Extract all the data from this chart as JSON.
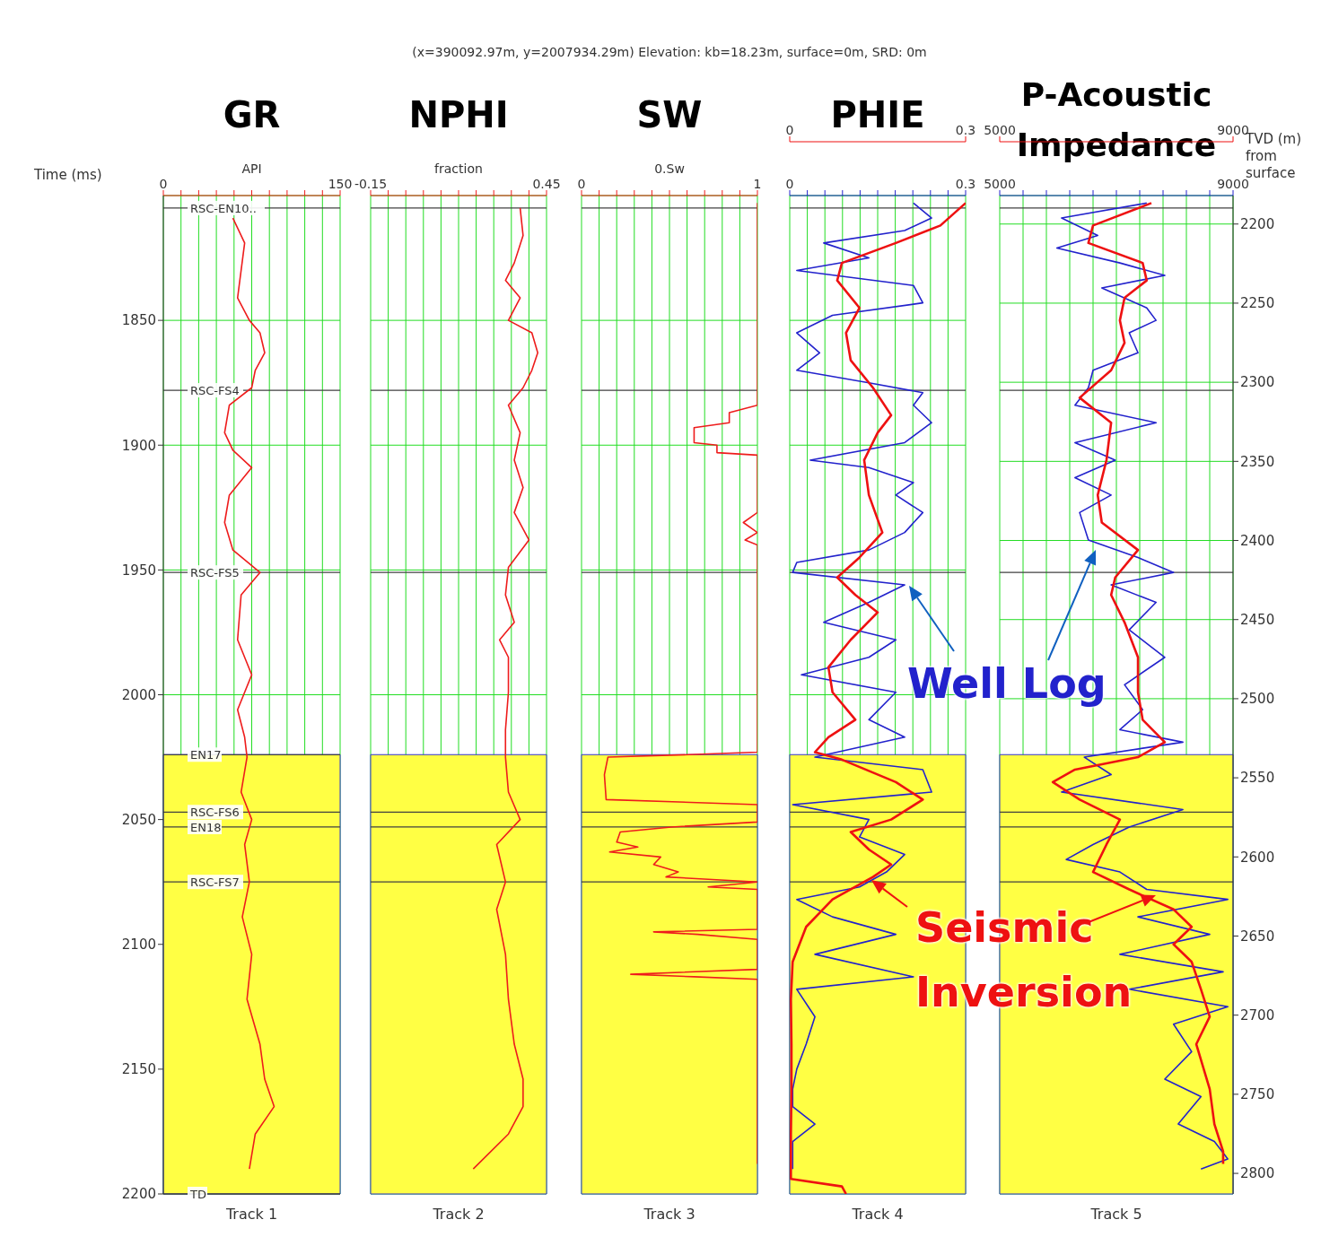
{
  "chart_data": [
    {
      "type": "line",
      "orientation": "horizontal",
      "title": "GR",
      "xlabel": "API",
      "ylabel": "Time (ms)",
      "annotations": [
        "Track 1"
      ],
      "xlim": [
        0,
        150
      ],
      "xticks": [
        0,
        {
          "value": 15,
          "label": null
        },
        {
          "value": 30,
          "label": null
        },
        {
          "value": 45,
          "label": null
        },
        {
          "value": 60,
          "label": null
        },
        {
          "value": 75,
          "label": null
        },
        {
          "value": 90,
          "label": null
        },
        {
          "value": 105,
          "label": null
        },
        {
          "value": 120,
          "label": null
        },
        {
          "value": 135,
          "label": null
        },
        150
      ],
      "ylim": [
        2200,
        1800
      ],
      "yticks": [
        1850,
        1900,
        1950,
        2000,
        2050,
        2100,
        2150,
        2200
      ],
      "grid": true,
      "marker": "none",
      "ref_lines": [
        {
          "axis": "y",
          "value": 1805,
          "label": "RSC-EN10..",
          "color": "#404040"
        },
        {
          "axis": "y",
          "value": 1878,
          "label": "RSC-FS4",
          "color": "#404040"
        },
        {
          "axis": "y",
          "value": 1951,
          "label": "RSC-FS5",
          "color": "#404040"
        },
        {
          "axis": "y",
          "value": 2024,
          "label": "EN17",
          "color": "#404040"
        },
        {
          "axis": "y",
          "value": 2047,
          "label": "RSC-FS6",
          "color": "#404040"
        },
        {
          "axis": "y",
          "value": 2053,
          "label": "EN18",
          "color": "#404040"
        },
        {
          "axis": "y",
          "value": 2075,
          "label": "RSC-FS7",
          "color": "#404040"
        },
        {
          "axis": "y",
          "value": 2200,
          "label": "TD",
          "color": "#404040"
        }
      ],
      "bands": [
        {
          "axis": "y",
          "from": 2024,
          "to": 2200,
          "color": "#ffff44"
        }
      ],
      "series": [
        {
          "color": "#ee1c1c",
          "x": [
            1809,
            1819,
            1830,
            1841,
            1850,
            1855,
            1863,
            1870,
            1877,
            1884,
            1895,
            1902,
            1909,
            1920,
            1931,
            1942,
            1951,
            1960,
            1978,
            1992,
            2006,
            2017,
            2025,
            2039,
            2050,
            2060,
            2075,
            2089,
            2104,
            2122,
            2140,
            2154,
            2165,
            2176,
            2190
          ],
          "values": [
            59,
            69,
            66,
            63,
            73,
            82,
            86,
            78,
            75,
            56,
            52,
            59,
            75,
            56,
            52,
            59,
            82,
            66,
            63,
            75,
            63,
            69,
            71,
            66,
            75,
            69,
            73,
            67,
            75,
            71,
            82,
            86,
            94,
            78,
            73
          ]
        }
      ]
    },
    {
      "type": "line",
      "orientation": "horizontal",
      "title": "NPHI",
      "xlabel": "fraction",
      "annotations": [
        "Track 2"
      ],
      "xlim": [
        -0.15,
        0.45
      ],
      "xticks": [
        -0.15,
        {
          "value": -0.09,
          "label": null
        },
        {
          "value": -0.03,
          "label": null
        },
        {
          "value": 0.03,
          "label": null
        },
        {
          "value": 0.09,
          "label": null
        },
        {
          "value": 0.15,
          "label": null
        },
        {
          "value": 0.21,
          "label": null
        },
        {
          "value": 0.27,
          "label": null
        },
        {
          "value": 0.33,
          "label": null
        },
        {
          "value": 0.39,
          "label": null
        },
        0.45
      ],
      "ylim": [
        2200,
        1800
      ],
      "yticks": [
        1850,
        1900,
        1950,
        2000,
        2050,
        2100,
        2150,
        2200
      ],
      "tick_labels": "x",
      "grid": true,
      "marker": "none",
      "ref_lines": [
        {
          "axis": "y",
          "value": 1805,
          "color": "#404040"
        },
        {
          "axis": "y",
          "value": 1878,
          "color": "#404040"
        },
        {
          "axis": "y",
          "value": 1951,
          "color": "#404040"
        },
        {
          "axis": "y",
          "value": 2047,
          "color": "#404040"
        },
        {
          "axis": "y",
          "value": 2053,
          "color": "#404040"
        },
        {
          "axis": "y",
          "value": 2075,
          "color": "#404040"
        }
      ],
      "bands": [
        {
          "axis": "y",
          "from": 2024,
          "to": 2200,
          "color": "#ffff44"
        }
      ],
      "series": [
        {
          "color": "#ee1c1c",
          "x": [
            1805,
            1816,
            1827,
            1834,
            1841,
            1850,
            1855,
            1863,
            1870,
            1877,
            1884,
            1895,
            1906,
            1917,
            1927,
            1938,
            1949,
            1960,
            1971,
            1978,
            1985,
            1999,
            2014,
            2025,
            2039,
            2050,
            2060,
            2075,
            2086,
            2104,
            2122,
            2140,
            2154,
            2165,
            2176,
            2190
          ],
          "values": [
            0.36,
            0.37,
            0.34,
            0.31,
            0.36,
            0.32,
            0.4,
            0.42,
            0.4,
            0.37,
            0.32,
            0.36,
            0.34,
            0.37,
            0.34,
            0.39,
            0.32,
            0.31,
            0.34,
            0.29,
            0.32,
            0.32,
            0.31,
            0.31,
            0.32,
            0.36,
            0.28,
            0.31,
            0.28,
            0.31,
            0.32,
            0.34,
            0.37,
            0.37,
            0.32,
            0.2
          ]
        }
      ]
    },
    {
      "type": "line",
      "orientation": "horizontal",
      "title": "SW",
      "subtitle": "(x=390092.97m, y=2007934.29m) Elevation: kb=18.23m, surface=0m, SRD: 0m",
      "xlabel": "0.Sw",
      "annotations": [
        "Track 3"
      ],
      "xlim": [
        0,
        1
      ],
      "xticks": [
        0,
        {
          "value": 0.1,
          "label": null
        },
        {
          "value": 0.2,
          "label": null
        },
        {
          "value": 0.3,
          "label": null
        },
        {
          "value": 0.4,
          "label": null
        },
        {
          "value": 0.5,
          "label": null
        },
        {
          "value": 0.6,
          "label": null
        },
        {
          "value": 0.7,
          "label": null
        },
        {
          "value": 0.8,
          "label": null
        },
        {
          "value": 0.9,
          "label": null
        },
        1
      ],
      "ylim": [
        2200,
        1800
      ],
      "yticks": [
        1850,
        1900,
        1950,
        2000,
        2050,
        2100,
        2150,
        2200
      ],
      "tick_labels": "x",
      "grid": true,
      "marker": "none",
      "ref_lines": [
        {
          "axis": "y",
          "value": 1805,
          "color": "#404040"
        },
        {
          "axis": "y",
          "value": 1878,
          "color": "#404040"
        },
        {
          "axis": "y",
          "value": 1951,
          "color": "#404040"
        },
        {
          "axis": "y",
          "value": 2047,
          "color": "#404040"
        },
        {
          "axis": "y",
          "value": 2053,
          "color": "#404040"
        },
        {
          "axis": "y",
          "value": 2075,
          "color": "#404040"
        }
      ],
      "bands": [
        {
          "axis": "y",
          "from": 2024,
          "to": 2200,
          "color": "#ffff44"
        }
      ],
      "series": [
        {
          "color": "#ee1c1c",
          "x": [
            1803,
            1884,
            1887,
            1891,
            1893,
            1899,
            1900,
            1903,
            1904,
            1927,
            1931,
            1935,
            1938,
            1940,
            2023,
            2024,
            2025,
            2032,
            2042,
            2044,
            2051,
            2053,
            2055,
            2059,
            2061,
            2063,
            2065,
            2068,
            2071,
            2073,
            2075,
            2077,
            2078,
            2094,
            2095,
            2096,
            2098,
            2110,
            2112,
            2113,
            2114,
            2188
          ],
          "values": [
            1.0,
            1.0,
            0.84,
            0.84,
            0.64,
            0.64,
            0.77,
            0.77,
            1.0,
            1.0,
            0.92,
            1.0,
            0.93,
            1.0,
            1.0,
            0.61,
            0.15,
            0.13,
            0.14,
            1.0,
            1.0,
            0.51,
            0.22,
            0.2,
            0.32,
            0.16,
            0.45,
            0.41,
            0.55,
            0.48,
            1.0,
            0.72,
            1.0,
            1.0,
            0.41,
            0.66,
            1.0,
            1.0,
            0.28,
            0.64,
            1.0,
            1.0
          ]
        }
      ]
    },
    {
      "type": "line",
      "orientation": "horizontal",
      "title": "PHIE",
      "annotations": [
        "Track 4"
      ],
      "xlim": [
        0,
        0.3
      ],
      "xticks": [
        0,
        {
          "value": 0.03,
          "label": null
        },
        {
          "value": 0.06,
          "label": null
        },
        {
          "value": 0.09,
          "label": null
        },
        {
          "value": 0.12,
          "label": null
        },
        {
          "value": 0.15,
          "label": null
        },
        {
          "value": 0.18,
          "label": null
        },
        {
          "value": 0.21,
          "label": null
        },
        {
          "value": 0.24,
          "label": null
        },
        {
          "value": 0.27,
          "label": null
        },
        0.3
      ],
      "x2lim": [
        0,
        0.3
      ],
      "x2ticks": [
        0,
        0.3
      ],
      "ylim": [
        2200,
        1800
      ],
      "yticks": [
        1850,
        1900,
        1950,
        2000,
        2050,
        2100,
        2150,
        2200
      ],
      "tick_labels": "x",
      "grid": true,
      "marker": "none",
      "ref_lines": [
        {
          "axis": "y",
          "value": 1805,
          "color": "#404040"
        },
        {
          "axis": "y",
          "value": 1878,
          "color": "#404040"
        },
        {
          "axis": "y",
          "value": 1951,
          "color": "#404040"
        },
        {
          "axis": "y",
          "value": 2047,
          "color": "#404040"
        },
        {
          "axis": "y",
          "value": 2053,
          "color": "#404040"
        },
        {
          "axis": "y",
          "value": 2075,
          "color": "#404040"
        }
      ],
      "bands": [
        {
          "axis": "y",
          "from": 2024,
          "to": 2200,
          "color": "#ffff44"
        }
      ],
      "series": [
        {
          "name": "Well Log",
          "color": "#2222cc",
          "x": [
            1803,
            1809,
            1814,
            1819,
            1825,
            1830,
            1836,
            1843,
            1848,
            1855,
            1863,
            1870,
            1875,
            1879,
            1884,
            1891,
            1899,
            1906,
            1909,
            1915,
            1920,
            1927,
            1935,
            1942,
            1947,
            1951,
            1956,
            1963,
            1971,
            1978,
            1985,
            1992,
            1999,
            2010,
            2017,
            2025,
            2030,
            2039,
            2044,
            2050,
            2057,
            2064,
            2071,
            2077,
            2082,
            2089,
            2096,
            2104,
            2113,
            2118,
            2129,
            2140,
            2150,
            2158,
            2165,
            2172,
            2179,
            2190
          ],
          "values": [
            0.211,
            0.242,
            0.196,
            0.058,
            0.135,
            0.012,
            0.211,
            0.227,
            0.073,
            0.012,
            0.051,
            0.012,
            0.135,
            0.227,
            0.211,
            0.242,
            0.196,
            0.035,
            0.135,
            0.211,
            0.181,
            0.227,
            0.196,
            0.135,
            0.012,
            0.005,
            0.196,
            0.135,
            0.058,
            0.181,
            0.135,
            0.02,
            0.181,
            0.135,
            0.196,
            0.043,
            0.227,
            0.242,
            0.005,
            0.135,
            0.119,
            0.196,
            0.165,
            0.119,
            0.012,
            0.073,
            0.181,
            0.043,
            0.211,
            0.012,
            0.043,
            0.028,
            0.012,
            0.005,
            0.005,
            0.043,
            0.005,
            0.005
          ]
        },
        {
          "name": "Seismic Inversion",
          "color": "#ee1111",
          "axis": "x2",
          "x": [
            1803,
            1812,
            1819,
            1827,
            1834,
            1845,
            1855,
            1866,
            1877,
            1888,
            1895,
            1906,
            1920,
            1935,
            1945,
            1953,
            1960,
            1967,
            1978,
            1989,
            1999,
            2010,
            2017,
            2023,
            2026,
            2035,
            2042,
            2050,
            2055,
            2062,
            2068,
            2073,
            2082,
            2093,
            2107,
            2122,
            2140,
            2158,
            2176,
            2194,
            2197,
            2200
          ],
          "values": [
            0.3,
            0.257,
            0.181,
            0.089,
            0.081,
            0.119,
            0.096,
            0.104,
            0.142,
            0.173,
            0.15,
            0.127,
            0.135,
            0.158,
            0.119,
            0.081,
            0.112,
            0.15,
            0.104,
            0.066,
            0.073,
            0.112,
            0.066,
            0.043,
            0.089,
            0.181,
            0.227,
            0.173,
            0.104,
            0.135,
            0.173,
            0.142,
            0.073,
            0.028,
            0.005,
            0.002,
            0.003,
            0.003,
            0.002,
            0.002,
            0.089,
            0.096
          ]
        }
      ]
    },
    {
      "type": "line",
      "orientation": "horizontal",
      "title": "P-Acoustic Impedance",
      "annotations": [
        "Track 5"
      ],
      "xlim": [
        5000,
        9000
      ],
      "xticks": [
        5000,
        {
          "value": 5400,
          "label": null
        },
        {
          "value": 5800,
          "label": null
        },
        {
          "value": 6200,
          "label": null
        },
        {
          "value": 6600,
          "label": null
        },
        {
          "value": 7000,
          "label": null
        },
        {
          "value": 7400,
          "label": null
        },
        {
          "value": 7800,
          "label": null
        },
        {
          "value": 8200,
          "label": null
        },
        {
          "value": 8600,
          "label": null
        },
        9000
      ],
      "x2lim": [
        5000,
        9000
      ],
      "x2ticks": [
        5000,
        9000
      ],
      "ylim": [
        2200,
        1800
      ],
      "y2label": "TVD (m) from surface",
      "y2lim": [
        2813,
        2182
      ],
      "y2ticks": [
        2200,
        2250,
        2300,
        2350,
        2400,
        2450,
        2500,
        2550,
        2600,
        2650,
        2700,
        2750,
        2800
      ],
      "grid": true,
      "marker": "none",
      "ref_lines": [
        {
          "axis": "y",
          "value": 1805,
          "color": "#404040"
        },
        {
          "axis": "y",
          "value": 1878,
          "color": "#404040"
        },
        {
          "axis": "y",
          "value": 1951,
          "color": "#404040"
        },
        {
          "axis": "y",
          "value": 2047,
          "color": "#404040"
        },
        {
          "axis": "y",
          "value": 2053,
          "color": "#404040"
        },
        {
          "axis": "y",
          "value": 2075,
          "color": "#404040"
        }
      ],
      "bands": [
        {
          "axis": "y",
          "from": 2024,
          "to": 2200,
          "color": "#ffff44"
        }
      ],
      "series": [
        {
          "color": "#2222cc",
          "x": [
            1803,
            1809,
            1816,
            1821,
            1827,
            1832,
            1837,
            1845,
            1850,
            1855,
            1863,
            1870,
            1877,
            1884,
            1891,
            1899,
            1906,
            1913,
            1920,
            1927,
            1938,
            1945,
            1951,
            1956,
            1963,
            1974,
            1985,
            1996,
            2006,
            2014,
            2019,
            2025,
            2032,
            2039,
            2046,
            2053,
            2060,
            2066,
            2071,
            2078,
            2082,
            2089,
            2096,
            2104,
            2111,
            2118,
            2125,
            2132,
            2143,
            2154,
            2161,
            2172,
            2179,
            2186,
            2190
          ],
          "values": [
            7520,
            6060,
            6680,
            5980,
            7060,
            7830,
            6750,
            7520,
            7680,
            7220,
            7370,
            6600,
            6520,
            6290,
            7680,
            6290,
            6980,
            6290,
            6910,
            6370,
            6520,
            7370,
            7980,
            6910,
            7680,
            7220,
            7830,
            7140,
            7450,
            7060,
            8140,
            6450,
            6910,
            6060,
            8140,
            7220,
            6600,
            6140,
            7060,
            7520,
            8910,
            7370,
            8600,
            7060,
            8830,
            7220,
            8910,
            7980,
            8290,
            7830,
            8450,
            8060,
            8680,
            8910,
            8450
          ]
        },
        {
          "color": "#ee1111",
          "axis": "x2",
          "x": [
            1803,
            1812,
            1819,
            1827,
            1834,
            1841,
            1850,
            1859,
            1870,
            1881,
            1891,
            1906,
            1920,
            1931,
            1942,
            1953,
            1960,
            1971,
            1985,
            1999,
            2010,
            2019,
            2025,
            2030,
            2035,
            2042,
            2050,
            2060,
            2071,
            2078,
            2086,
            2093,
            2100,
            2107,
            2118,
            2129,
            2140,
            2158,
            2172,
            2183,
            2188
          ],
          "values": [
            7600,
            6600,
            6520,
            7450,
            7520,
            7140,
            7060,
            7140,
            6910,
            6370,
            6910,
            6830,
            6680,
            6750,
            7370,
            6980,
            6910,
            7140,
            7370,
            7370,
            7450,
            7830,
            7370,
            6290,
            5910,
            6370,
            7060,
            6830,
            6600,
            7220,
            7980,
            8290,
            7980,
            8290,
            8450,
            8600,
            8370,
            8600,
            8680,
            8830,
            8830
          ]
        }
      ]
    }
  ]
}
